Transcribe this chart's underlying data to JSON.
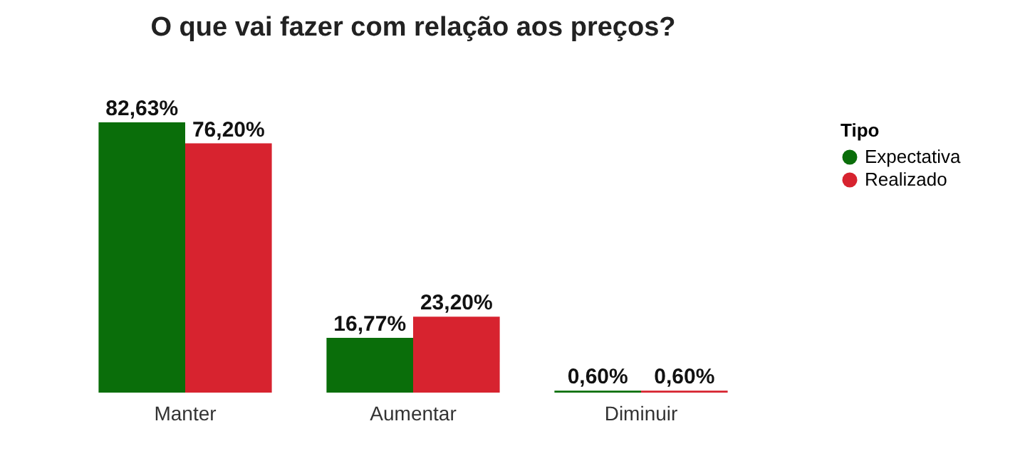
{
  "chart_data": {
    "type": "bar",
    "title": "O que vai fazer com relação aos preços?",
    "legend_title": "Tipo",
    "legend": "right",
    "grid": false,
    "categories": [
      "Manter",
      "Aumentar",
      "Diminuir"
    ],
    "series": [
      {
        "name": "Expectativa",
        "color": "#0a6e0a",
        "values": [
          82.63,
          16.77,
          0.6
        ],
        "value_labels": [
          "82,63%",
          "16,77%",
          "0,60%"
        ]
      },
      {
        "name": "Realizado",
        "color": "#d7232f",
        "values": [
          76.2,
          23.2,
          0.6
        ],
        "value_labels": [
          "76,20%",
          "23,20%",
          "0,60%"
        ]
      }
    ]
  }
}
